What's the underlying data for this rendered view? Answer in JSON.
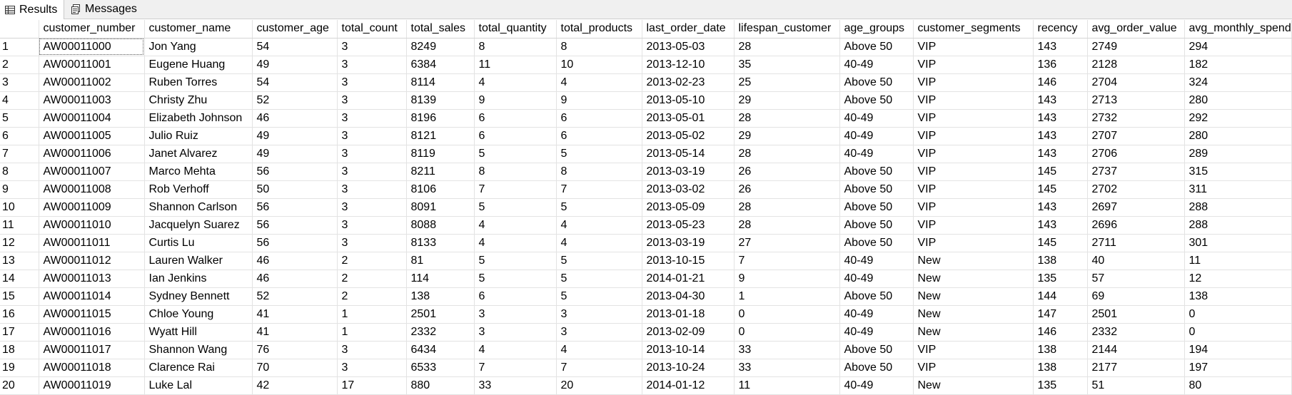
{
  "tabs": {
    "results_label": "Results",
    "messages_label": "Messages"
  },
  "grid": {
    "columns": [
      "",
      "customer_number",
      "customer_name",
      "customer_age",
      "total_count",
      "total_sales",
      "total_quantity",
      "total_products",
      "last_order_date",
      "lifespan_customer",
      "age_groups",
      "customer_segments",
      "recency",
      "avg_order_value",
      "avg_monthly_spend"
    ],
    "rows": [
      [
        "1",
        "AW00011000",
        "Jon Yang",
        "54",
        "3",
        "8249",
        "8",
        "8",
        "2013-05-03",
        "28",
        "Above 50",
        "VIP",
        "143",
        "2749",
        "294"
      ],
      [
        "2",
        "AW00011001",
        "Eugene Huang",
        "49",
        "3",
        "6384",
        "11",
        "10",
        "2013-12-10",
        "35",
        "40-49",
        "VIP",
        "136",
        "2128",
        "182"
      ],
      [
        "3",
        "AW00011002",
        "Ruben Torres",
        "54",
        "3",
        "8114",
        "4",
        "4",
        "2013-02-23",
        "25",
        "Above 50",
        "VIP",
        "146",
        "2704",
        "324"
      ],
      [
        "4",
        "AW00011003",
        "Christy Zhu",
        "52",
        "3",
        "8139",
        "9",
        "9",
        "2013-05-10",
        "29",
        "Above 50",
        "VIP",
        "143",
        "2713",
        "280"
      ],
      [
        "5",
        "AW00011004",
        "Elizabeth Johnson",
        "46",
        "3",
        "8196",
        "6",
        "6",
        "2013-05-01",
        "28",
        "40-49",
        "VIP",
        "143",
        "2732",
        "292"
      ],
      [
        "6",
        "AW00011005",
        "Julio Ruiz",
        "49",
        "3",
        "8121",
        "6",
        "6",
        "2013-05-02",
        "29",
        "40-49",
        "VIP",
        "143",
        "2707",
        "280"
      ],
      [
        "7",
        "AW00011006",
        "Janet Alvarez",
        "49",
        "3",
        "8119",
        "5",
        "5",
        "2013-05-14",
        "28",
        "40-49",
        "VIP",
        "143",
        "2706",
        "289"
      ],
      [
        "8",
        "AW00011007",
        "Marco Mehta",
        "56",
        "3",
        "8211",
        "8",
        "8",
        "2013-03-19",
        "26",
        "Above 50",
        "VIP",
        "145",
        "2737",
        "315"
      ],
      [
        "9",
        "AW00011008",
        "Rob Verhoff",
        "50",
        "3",
        "8106",
        "7",
        "7",
        "2013-03-02",
        "26",
        "Above 50",
        "VIP",
        "145",
        "2702",
        "311"
      ],
      [
        "10",
        "AW00011009",
        "Shannon Carlson",
        "56",
        "3",
        "8091",
        "5",
        "5",
        "2013-05-09",
        "28",
        "Above 50",
        "VIP",
        "143",
        "2697",
        "288"
      ],
      [
        "11",
        "AW00011010",
        "Jacquelyn Suarez",
        "56",
        "3",
        "8088",
        "4",
        "4",
        "2013-05-23",
        "28",
        "Above 50",
        "VIP",
        "143",
        "2696",
        "288"
      ],
      [
        "12",
        "AW00011011",
        "Curtis Lu",
        "56",
        "3",
        "8133",
        "4",
        "4",
        "2013-03-19",
        "27",
        "Above 50",
        "VIP",
        "145",
        "2711",
        "301"
      ],
      [
        "13",
        "AW00011012",
        "Lauren Walker",
        "46",
        "2",
        "81",
        "5",
        "5",
        "2013-10-15",
        "7",
        "40-49",
        "New",
        "138",
        "40",
        "11"
      ],
      [
        "14",
        "AW00011013",
        "Ian Jenkins",
        "46",
        "2",
        "114",
        "5",
        "5",
        "2014-01-21",
        "9",
        "40-49",
        "New",
        "135",
        "57",
        "12"
      ],
      [
        "15",
        "AW00011014",
        "Sydney Bennett",
        "52",
        "2",
        "138",
        "6",
        "5",
        "2013-04-30",
        "1",
        "Above 50",
        "New",
        "144",
        "69",
        "138"
      ],
      [
        "16",
        "AW00011015",
        "Chloe Young",
        "41",
        "1",
        "2501",
        "3",
        "3",
        "2013-01-18",
        "0",
        "40-49",
        "New",
        "147",
        "2501",
        "0"
      ],
      [
        "17",
        "AW00011016",
        "Wyatt Hill",
        "41",
        "1",
        "2332",
        "3",
        "3",
        "2013-02-09",
        "0",
        "40-49",
        "New",
        "146",
        "2332",
        "0"
      ],
      [
        "18",
        "AW00011017",
        "Shannon Wang",
        "76",
        "3",
        "6434",
        "4",
        "4",
        "2013-10-14",
        "33",
        "Above 50",
        "VIP",
        "138",
        "2144",
        "194"
      ],
      [
        "19",
        "AW00011018",
        "Clarence Rai",
        "70",
        "3",
        "6533",
        "7",
        "7",
        "2013-10-24",
        "33",
        "Above 50",
        "VIP",
        "138",
        "2177",
        "197"
      ],
      [
        "20",
        "AW00011019",
        "Luke Lal",
        "42",
        "17",
        "880",
        "33",
        "20",
        "2014-01-12",
        "11",
        "40-49",
        "New",
        "135",
        "51",
        "80"
      ]
    ]
  }
}
